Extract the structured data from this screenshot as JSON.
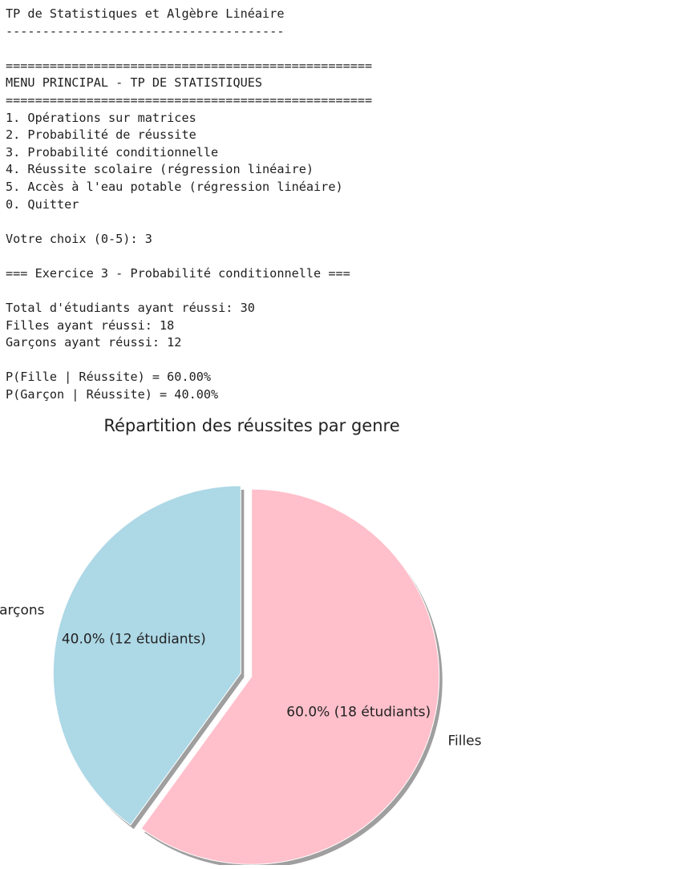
{
  "console": {
    "lines": [
      "TP de Statistiques et Algèbre Linéaire",
      "--------------------------------------",
      "",
      "==================================================",
      "MENU PRINCIPAL - TP DE STATISTIQUES",
      "==================================================",
      "1. Opérations sur matrices",
      "2. Probabilité de réussite",
      "3. Probabilité conditionnelle",
      "4. Réussite scolaire (régression linéaire)",
      "5. Accès à l'eau potable (régression linéaire)",
      "0. Quitter",
      "",
      "Votre choix (0-5): 3",
      "",
      "=== Exercice 3 - Probabilité conditionnelle ===",
      "",
      "Total d'étudiants ayant réussi: 30",
      "Filles ayant réussi: 18",
      "Garçons ayant réussi: 12",
      "",
      "P(Fille | Réussite) = 60.00%",
      "P(Garçon | Réussite) = 40.00%"
    ]
  },
  "chart_data": {
    "type": "pie",
    "title": "Répartition des réussites par genre",
    "labels": [
      "Garçons",
      "Filles"
    ],
    "values": [
      12,
      18
    ],
    "autopct_labels": [
      "40.0% (12 étudiants)",
      "60.0% (18 étudiants)"
    ],
    "colors": [
      "#add8e6",
      "#ffc0cb"
    ],
    "start_angle_deg": 90,
    "explode": [
      0.03,
      0.03
    ],
    "shadow": true
  }
}
